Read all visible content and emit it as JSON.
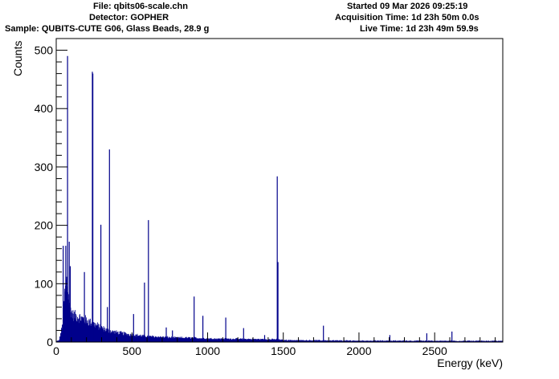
{
  "header": {
    "file": "File: qbits06-scale.chn",
    "detector": "Detector: GOPHER",
    "sample": "Sample: QUBITS-CUTE G06, Glass Beads, 28.9 g",
    "started": "Started 09 Mar 2026 09:25:19",
    "acquisition_time": "Acquisition Time: 1d 23h 50m 0.0s",
    "live_time": "Live Time: 1d 23h 49m 59.9s"
  },
  "colors": {
    "series": "#00008b",
    "axis": "#000000",
    "background": "#ffffff"
  },
  "chart_data": {
    "type": "histogram",
    "title": "",
    "xlabel": "Energy (keV)",
    "ylabel": "Counts",
    "xlim": [
      0,
      2950
    ],
    "ylim": [
      0,
      520
    ],
    "x_ticks": [
      0,
      500,
      1000,
      1500,
      2000,
      2500
    ],
    "y_ticks": [
      0,
      100,
      200,
      300,
      400,
      500
    ],
    "grid": false,
    "legend": "none",
    "series": [
      {
        "continuum": [
          [
            0,
            0
          ],
          [
            20,
            2
          ],
          [
            40,
            20
          ],
          [
            55,
            60
          ],
          [
            70,
            80
          ],
          [
            90,
            45
          ],
          [
            110,
            35
          ],
          [
            150,
            32
          ],
          [
            200,
            28
          ],
          [
            240,
            24
          ],
          [
            300,
            18
          ],
          [
            350,
            14
          ],
          [
            400,
            12
          ],
          [
            500,
            9
          ],
          [
            600,
            7
          ],
          [
            700,
            6
          ],
          [
            800,
            5
          ],
          [
            900,
            5
          ],
          [
            1000,
            4
          ],
          [
            1200,
            3.5
          ],
          [
            1400,
            3
          ],
          [
            1460,
            3
          ],
          [
            1500,
            2
          ],
          [
            1800,
            1.5
          ],
          [
            2000,
            1.2
          ],
          [
            2500,
            1
          ],
          [
            2950,
            0.8
          ]
        ],
        "peaks": [
          {
            "energy": 46,
            "counts": 165
          },
          {
            "energy": 63,
            "counts": 165
          },
          {
            "energy": 75,
            "counts": 490
          },
          {
            "energy": 86,
            "counts": 172
          },
          {
            "energy": 93,
            "counts": 130
          },
          {
            "energy": 186,
            "counts": 120
          },
          {
            "energy": 239,
            "counts": 463
          },
          {
            "energy": 242,
            "counts": 460
          },
          {
            "energy": 295,
            "counts": 201
          },
          {
            "energy": 338,
            "counts": 60
          },
          {
            "energy": 352,
            "counts": 330
          },
          {
            "energy": 511,
            "counts": 48
          },
          {
            "energy": 583,
            "counts": 102
          },
          {
            "energy": 609,
            "counts": 209
          },
          {
            "energy": 727,
            "counts": 25
          },
          {
            "energy": 768,
            "counts": 20
          },
          {
            "energy": 911,
            "counts": 78
          },
          {
            "energy": 969,
            "counts": 45
          },
          {
            "energy": 1120,
            "counts": 42
          },
          {
            "energy": 1238,
            "counts": 24
          },
          {
            "energy": 1377,
            "counts": 12
          },
          {
            "energy": 1460,
            "counts": 284
          },
          {
            "energy": 1465,
            "counts": 137
          },
          {
            "energy": 1765,
            "counts": 28
          },
          {
            "energy": 2204,
            "counts": 12
          },
          {
            "energy": 2448,
            "counts": 15
          },
          {
            "energy": 2614,
            "counts": 18
          }
        ]
      }
    ]
  }
}
